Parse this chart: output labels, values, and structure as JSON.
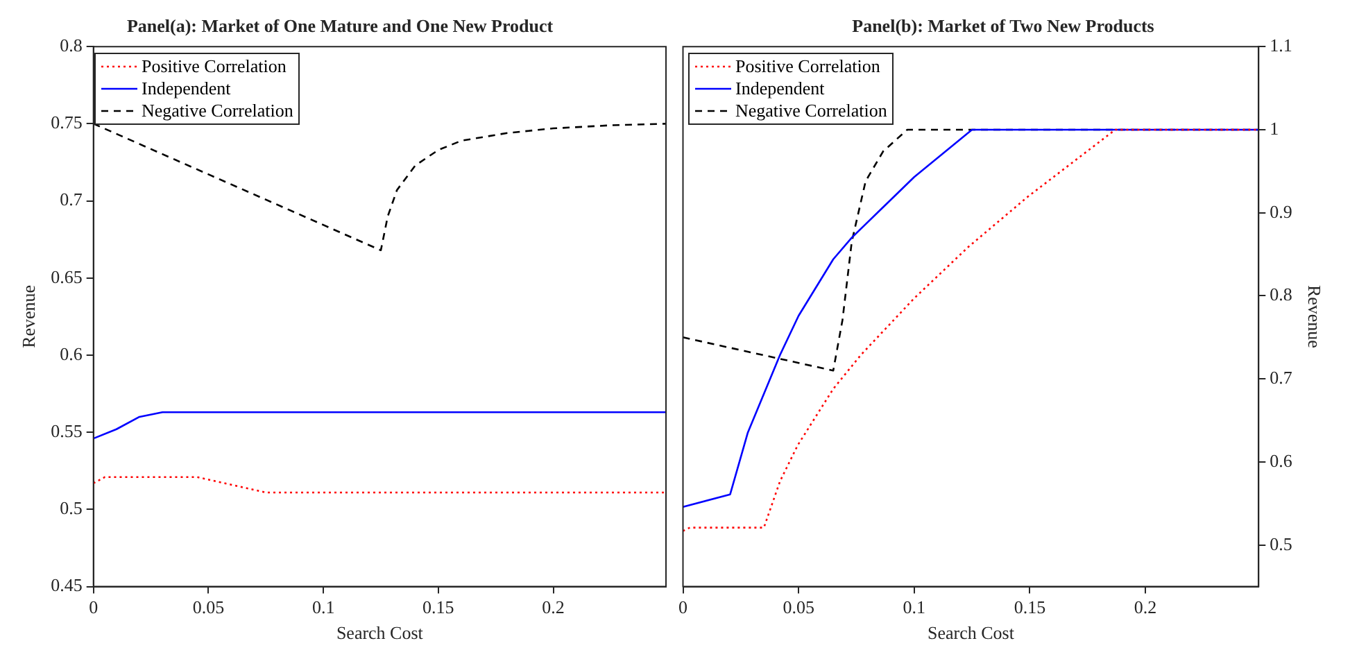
{
  "chart_data": [
    {
      "type": "line",
      "title": "Panel(a): Market of One Mature and One New Product",
      "xlabel": "Search Cost",
      "ylabel": "Revenue",
      "xlim": [
        0,
        0.249
      ],
      "xticks": [
        0,
        0.05,
        0.1,
        0.15,
        0.2
      ],
      "ylim": [
        0.45,
        0.8
      ],
      "yticks": [
        0.45,
        0.5,
        0.55,
        0.6,
        0.65,
        0.7,
        0.75,
        0.8
      ],
      "legend": "top left",
      "grid": false,
      "marker": "none",
      "series": [
        {
          "name": "Positive Correlation",
          "color": "#ff0000",
          "line_style": "dotted",
          "x": [
            0,
            0.005,
            0.045,
            0.075,
            0.249
          ],
          "values": [
            0.517,
            0.521,
            0.521,
            0.511,
            0.511
          ]
        },
        {
          "name": "Independent",
          "color": "#0000ff",
          "line_style": "solid",
          "x": [
            0,
            0.01,
            0.02,
            0.03,
            0.249
          ],
          "values": [
            0.546,
            0.552,
            0.56,
            0.563,
            0.563
          ]
        },
        {
          "name": "Negative Correlation",
          "color": "#000000",
          "line_style": "dashed",
          "x": [
            0,
            0.125,
            0.128,
            0.132,
            0.14,
            0.15,
            0.16,
            0.18,
            0.2,
            0.225,
            0.249
          ],
          "values": [
            0.75,
            0.668,
            0.69,
            0.707,
            0.723,
            0.733,
            0.739,
            0.744,
            0.747,
            0.749,
            0.75
          ]
        }
      ]
    },
    {
      "type": "line",
      "title": "Panel(b): Market of Two New Products",
      "xlabel": "Search Cost",
      "y2label": "Revenue",
      "xlim": [
        0,
        0.249
      ],
      "xticks": [
        0,
        0.05,
        0.1,
        0.15,
        0.2
      ],
      "y2lim": [
        0.45,
        1.1
      ],
      "y2ticks": [
        0.5,
        0.6,
        0.7,
        0.8,
        0.9,
        1,
        1.1
      ],
      "legend": "top left",
      "grid": false,
      "marker": "none",
      "series": [
        {
          "name": "Positive Correlation",
          "color": "#ff0000",
          "line_style": "dotted",
          "axis": "y2",
          "x": [
            0,
            0.003,
            0.035,
            0.042,
            0.0496,
            0.065,
            0.077,
            0.1,
            0.1235,
            0.149,
            0.187,
            0.249
          ],
          "values": [
            0.517,
            0.521,
            0.521,
            0.577,
            0.62,
            0.688,
            0.729,
            0.797,
            0.859,
            0.919,
            1,
            1
          ]
        },
        {
          "name": "Independent",
          "color": "#0000ff",
          "line_style": "solid",
          "axis": "y2",
          "x": [
            0,
            0.0204,
            0.028,
            0.042,
            0.05,
            0.065,
            0.073,
            0.1,
            0.125,
            0.249
          ],
          "values": [
            0.546,
            0.561,
            0.635,
            0.729,
            0.776,
            0.844,
            0.87,
            0.943,
            1,
            1
          ]
        },
        {
          "name": "Negative Correlation",
          "color": "#000000",
          "line_style": "dashed",
          "axis": "y2",
          "x": [
            0,
            0.065,
            0.069,
            0.073,
            0.079,
            0.0866,
            0.097,
            0.249
          ],
          "values": [
            0.75,
            0.71,
            0.771,
            0.865,
            0.938,
            0.974,
            1,
            1
          ]
        }
      ]
    }
  ]
}
